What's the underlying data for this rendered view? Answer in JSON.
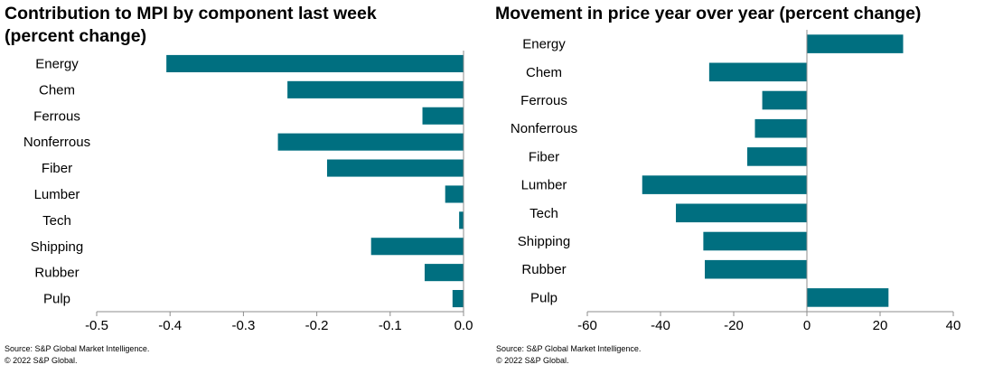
{
  "chart_data": [
    {
      "type": "bar",
      "orientation": "horizontal",
      "title_line1": "Contribution  to MPI by component last week",
      "title_line2": "(percent change)",
      "categories": [
        "Energy",
        "Chem",
        "Ferrous",
        "Nonferrous",
        "Fiber",
        "Lumber",
        "Tech",
        "Shipping",
        "Rubber",
        "Pulp"
      ],
      "values": [
        -0.405,
        -0.24,
        -0.056,
        -0.253,
        -0.186,
        -0.025,
        -0.006,
        -0.126,
        -0.053,
        -0.015
      ],
      "xlim": [
        -0.5,
        0.0
      ],
      "xticks": [
        "-0.5",
        "-0.4",
        "-0.3",
        "-0.2",
        "-0.1",
        "0.0"
      ],
      "bar_color": "#006f80",
      "grid": false,
      "source_line1": "Source: S&P Global Market Intelligence.",
      "source_line2": "© 2022 S&P Global."
    },
    {
      "type": "bar",
      "orientation": "horizontal",
      "title_line1": "Movement in price year over year (percent change)",
      "title_line2": "",
      "categories": [
        "Energy",
        "Chem",
        "Ferrous",
        "Nonferrous",
        "Fiber",
        "Lumber",
        "Tech",
        "Shipping",
        "Rubber",
        "Pulp"
      ],
      "values": [
        26.3,
        -26.7,
        -12.2,
        -14.2,
        -16.3,
        -45.0,
        -35.8,
        -28.3,
        -27.9,
        22.3
      ],
      "xlim": [
        -60,
        40
      ],
      "xticks": [
        "-60",
        "-40",
        "-20",
        "0",
        "20",
        "40"
      ],
      "bar_color": "#006f80",
      "grid": false,
      "source_line1": "Source: S&P Global Market Intelligence.",
      "source_line2": "© 2022 S&P Global."
    }
  ]
}
